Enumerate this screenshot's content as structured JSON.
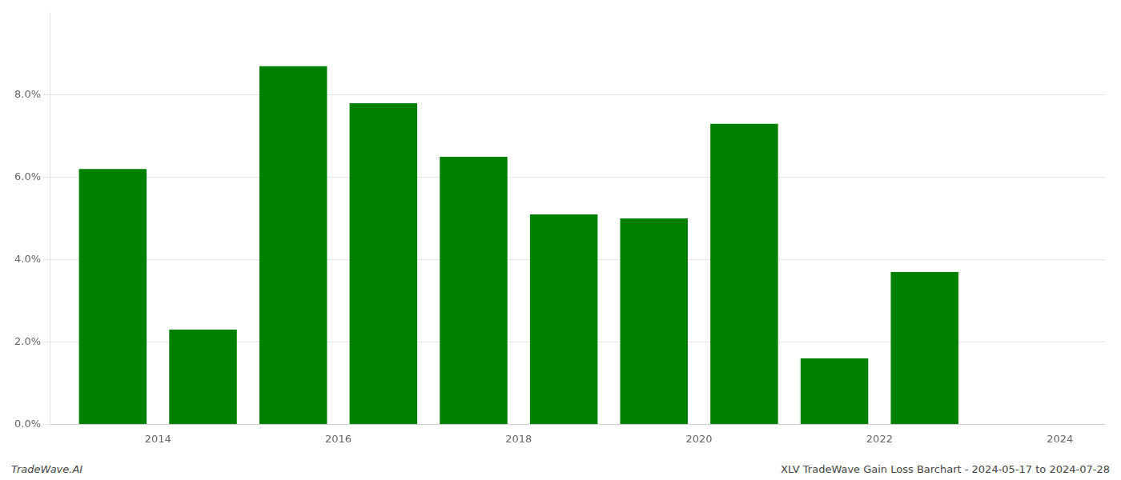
{
  "chart_data": {
    "type": "bar",
    "x": [
      2013.5,
      2014.5,
      2015.5,
      2016.5,
      2017.5,
      2018.5,
      2019.5,
      2020.5,
      2021.5,
      2022.5
    ],
    "values": [
      0.062,
      0.023,
      0.087,
      0.078,
      0.065,
      0.051,
      0.05,
      0.073,
      0.016,
      0.037
    ],
    "color": "#008000",
    "xlim": [
      2012.8,
      2024.5
    ],
    "xticks": [
      2014,
      2016,
      2018,
      2020,
      2022,
      2024
    ],
    "ylim": [
      0.0,
      0.1
    ],
    "yticks": [
      {
        "value": 0.0,
        "label": "0.0%"
      },
      {
        "value": 0.02,
        "label": "2.0%"
      },
      {
        "value": 0.04,
        "label": "4.0%"
      },
      {
        "value": 0.06,
        "label": "6.0%"
      },
      {
        "value": 0.08,
        "label": "8.0%"
      }
    ],
    "grid": true,
    "annotations": [
      "TradeWave.AI",
      "XLV TradeWave Gain Loss Barchart - 2024-05-17 to 2024-07-28"
    ]
  }
}
